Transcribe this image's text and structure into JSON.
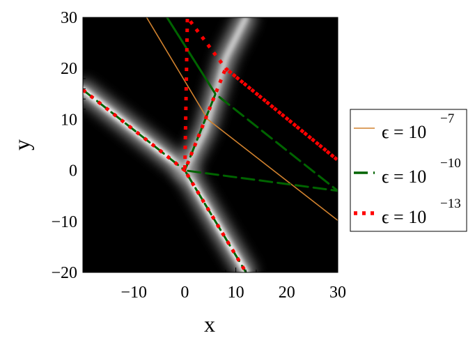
{
  "chart_data": {
    "type": "line",
    "background": "heatmap (grayscale density) with overlaid curves",
    "xlabel": "x",
    "ylabel": "y",
    "xlim": [
      -20,
      30
    ],
    "ylim": [
      -20,
      30
    ],
    "x_ticks": [
      -10,
      0,
      10,
      20,
      30
    ],
    "x_tick_labels": [
      "−10",
      "0",
      "10",
      "20",
      "30"
    ],
    "y_ticks": [
      -20,
      -10,
      0,
      10,
      20,
      30
    ],
    "y_tick_labels": [
      "−20",
      "−10",
      "0",
      "10",
      "20",
      "30"
    ],
    "legend_position": "right",
    "series": [
      {
        "name": "ϵ = 10",
        "exponent": "−7",
        "color": "#d2822e",
        "style": "solid",
        "x": [
          -7.5,
          4.5,
          30
        ],
        "y": [
          30,
          10,
          -9.8
        ]
      },
      {
        "name": "ϵ = 10",
        "exponent": "−10",
        "color": "#006400",
        "style": "dashed",
        "x": [
          -20,
          -5,
          0,
          6,
          -3.5,
          6,
          30,
          0,
          12
        ],
        "y": [
          15.8,
          4,
          0,
          15,
          30,
          15,
          -4,
          0,
          -20
        ]
      },
      {
        "name": "ϵ = 10",
        "exponent": "−13",
        "color": "#ff0000",
        "style": "dotted",
        "x": [
          -20,
          -5,
          0,
          6,
          8,
          30,
          8,
          0.5,
          0,
          12
        ],
        "y": [
          15.8,
          4,
          0,
          15,
          20,
          2,
          20,
          30,
          0,
          -20
        ]
      }
    ],
    "heatmap_ridges": [
      {
        "x": [
          -20,
          -5,
          0,
          12
        ],
        "y": [
          15.8,
          4,
          0,
          -20
        ]
      },
      {
        "x": [
          0,
          4,
          6,
          8,
          12
        ],
        "y": [
          0,
          8,
          15,
          22,
          30
        ]
      }
    ]
  }
}
